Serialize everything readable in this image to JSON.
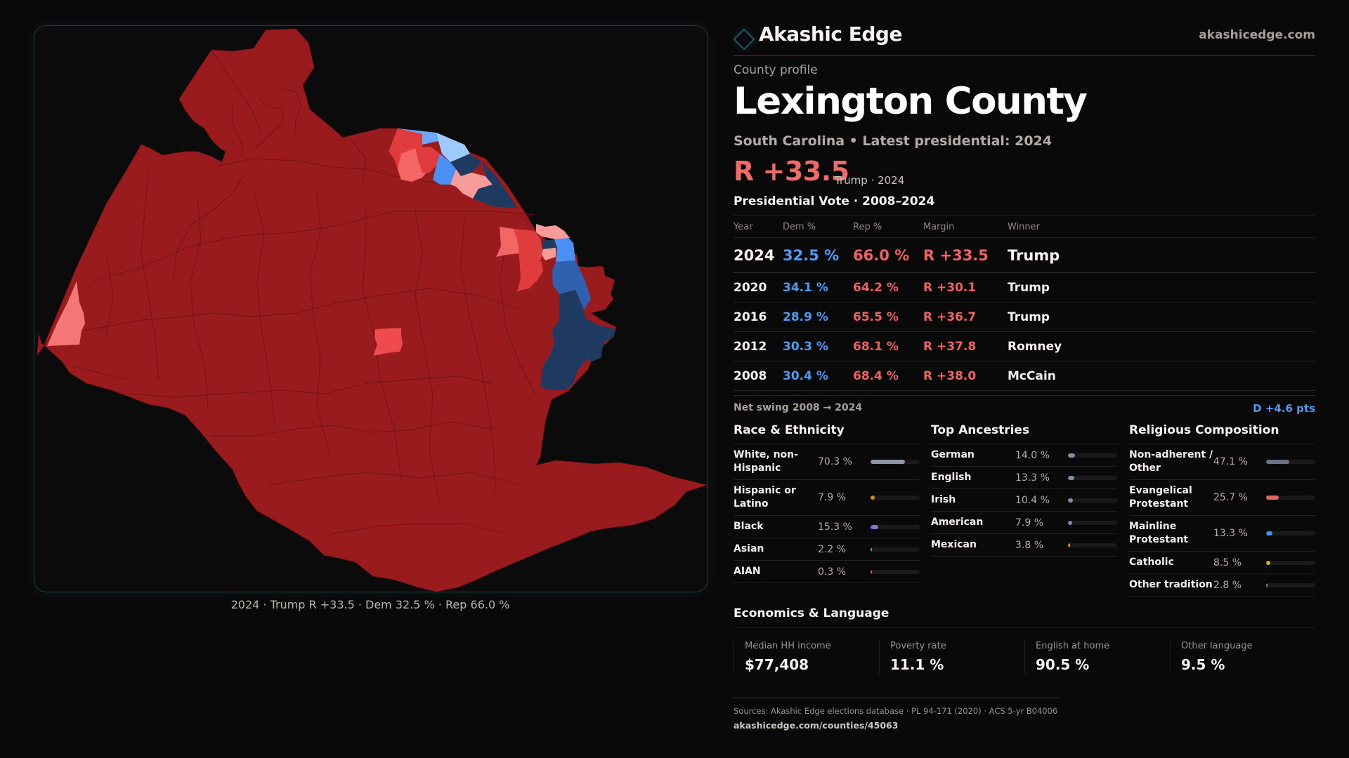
{
  "brand": {
    "name": "Akashic Edge",
    "url": "akashicedge.com",
    "logo_icon": "diamond-outline-icon"
  },
  "profile": {
    "eyebrow": "County profile",
    "county": "Lexington County",
    "subtitle": "South Carolina • Latest presidential: 2024",
    "headline_margin": "R +33.5",
    "headline_sub": "Trump · 2024"
  },
  "colors": {
    "dem": "#4e9bf5",
    "rep": "#f06262",
    "accent": "#174752",
    "map_scale": [
      "#991b1e",
      "#e03c3e",
      "#f26666",
      "#f89b9b",
      "#9ecbff",
      "#4a90f5",
      "#3060b0",
      "#1e3a60"
    ]
  },
  "vote": {
    "title": "Presidential Vote · 2008–2024",
    "headers": [
      "Year",
      "Dem %",
      "Rep %",
      "Margin",
      "Winner"
    ],
    "rows": [
      {
        "year": "2024",
        "dem": "32.5 %",
        "rep": "66.0 %",
        "margin": "R +33.5",
        "winner": "Trump"
      },
      {
        "year": "2020",
        "dem": "34.1 %",
        "rep": "64.2 %",
        "margin": "R +30.1",
        "winner": "Trump"
      },
      {
        "year": "2016",
        "dem": "28.9 %",
        "rep": "65.5 %",
        "margin": "R +36.7",
        "winner": "Trump"
      },
      {
        "year": "2012",
        "dem": "30.3 %",
        "rep": "68.1 %",
        "margin": "R +37.8",
        "winner": "Romney"
      },
      {
        "year": "2008",
        "dem": "30.4 %",
        "rep": "68.4 %",
        "margin": "R +38.0",
        "winner": "McCain"
      }
    ],
    "swing_label": "Net swing 2008 → 2024",
    "swing_value": "D +4.6 pts"
  },
  "race": {
    "title": "Race & Ethnicity",
    "items": [
      {
        "label": "White, non-Hispanic",
        "value": "70.3 %",
        "pct": 70.3,
        "color": "#8b95a5"
      },
      {
        "label": "Hispanic or Latino",
        "value": "7.9 %",
        "pct": 7.9,
        "color": "#d98a14"
      },
      {
        "label": "Black",
        "value": "15.3 %",
        "pct": 15.3,
        "color": "#8b6fdb"
      },
      {
        "label": "Asian",
        "value": "2.2 %",
        "pct": 2.2,
        "color": "#22b07d"
      },
      {
        "label": "AIAN",
        "value": "0.3 %",
        "pct": 0.3,
        "color": "#c8641e"
      }
    ]
  },
  "ancestry": {
    "title": "Top Ancestries",
    "items": [
      {
        "label": "German",
        "value": "14.0 %",
        "pct": 14.0,
        "color": "#8090a8"
      },
      {
        "label": "English",
        "value": "13.3 %",
        "pct": 13.3,
        "color": "#8090a8"
      },
      {
        "label": "Irish",
        "value": "10.4 %",
        "pct": 10.4,
        "color": "#8090a8"
      },
      {
        "label": "American",
        "value": "7.9 %",
        "pct": 7.9,
        "color": "#8090a8"
      },
      {
        "label": "Mexican",
        "value": "3.8 %",
        "pct": 3.8,
        "color": "#d98a14"
      }
    ]
  },
  "religion": {
    "title": "Religious Composition",
    "items": [
      {
        "label": "Non-adherent / Other",
        "value": "47.1 %",
        "pct": 47.1,
        "color": "#6b7280"
      },
      {
        "label": "Evangelical Protestant",
        "value": "25.7 %",
        "pct": 25.7,
        "color": "#e06666"
      },
      {
        "label": "Mainline Protestant",
        "value": "13.3 %",
        "pct": 13.3,
        "color": "#4a90e2"
      },
      {
        "label": "Catholic",
        "value": "8.5 %",
        "pct": 8.5,
        "color": "#e0a820"
      },
      {
        "label": "Other tradition",
        "value": "2.8 %",
        "pct": 2.8,
        "color": "#8b95a5"
      }
    ]
  },
  "economics": {
    "title": "Economics & Language",
    "cards": [
      {
        "label": "Median HH income",
        "value": "$77,408"
      },
      {
        "label": "Poverty rate",
        "value": "11.1 %"
      },
      {
        "label": "English at home",
        "value": "90.5 %"
      },
      {
        "label": "Other language",
        "value": "9.5 %"
      }
    ]
  },
  "map": {
    "caption": "2024 · Trump R +33.5 · Dem 32.5 % · Rep 66.0 %"
  },
  "footer": {
    "sources": "Sources: Akashic Edge elections database · PL 94-171 (2020) · ACS 5-yr B04006",
    "url": "akashicedge.com/counties/45063"
  }
}
